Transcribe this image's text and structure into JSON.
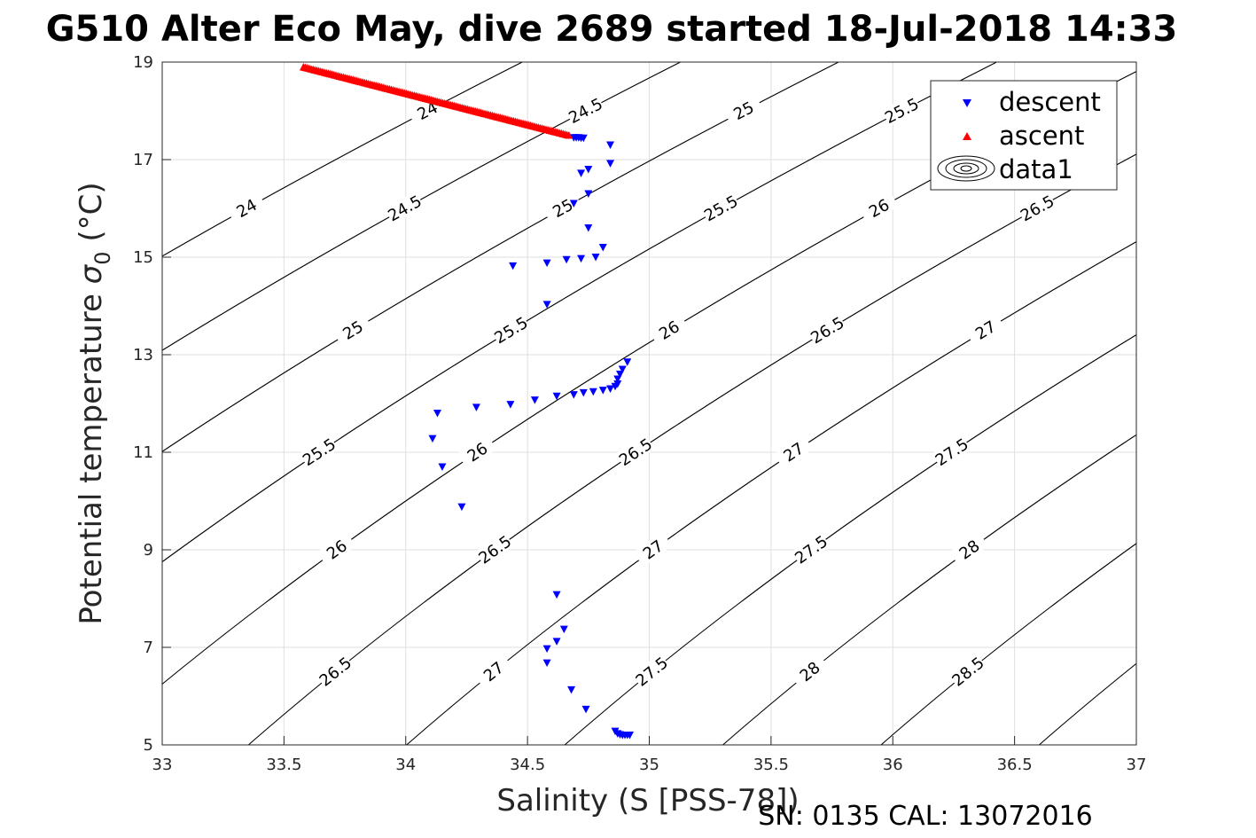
{
  "chart_data": {
    "type": "scatter",
    "title": "G510 Alter Eco May, dive 2689 started 18-Jul-2018 14:33",
    "xlabel": "Salinity (S [PSS-78])",
    "ylabel": "Potential temperature",
    "ylabel_symbol": "σ",
    "ylabel_subscript": "0",
    "ylabel_unit": "(°C)",
    "footer": "SN: 0135  CAL: 13072016",
    "xlim": [
      33,
      37
    ],
    "ylim": [
      5,
      19
    ],
    "xticks": [
      "33",
      "33.5",
      "34",
      "34.5",
      "35",
      "35.5",
      "36",
      "36.5",
      "37"
    ],
    "yticks": [
      "5",
      "7",
      "9",
      "11",
      "13",
      "15",
      "17",
      "19"
    ],
    "grid": true,
    "legend": {
      "placement": "top-right",
      "entries": [
        {
          "label": "descent",
          "marker": "triangle-down",
          "color": "#0000ff"
        },
        {
          "label": "ascent",
          "marker": "triangle-up",
          "color": "#ff0000"
        },
        {
          "label": "data1",
          "marker": "contour",
          "color": "#000000"
        }
      ]
    },
    "contour_levels": [
      "24",
      "24.5",
      "25",
      "25.5",
      "26",
      "26.5",
      "27",
      "27.5",
      "28",
      "28.5",
      "29"
    ],
    "series": [
      {
        "name": "descent",
        "color": "#0000ff",
        "marker": "triangle-down",
        "points": [
          [
            34.69,
            17.45
          ],
          [
            34.7,
            17.45
          ],
          [
            34.71,
            17.45
          ],
          [
            34.72,
            17.44
          ],
          [
            34.73,
            17.44
          ],
          [
            34.84,
            17.3
          ],
          [
            34.84,
            16.92
          ],
          [
            34.75,
            16.8
          ],
          [
            34.72,
            16.72
          ],
          [
            34.75,
            16.3
          ],
          [
            34.69,
            16.1
          ],
          [
            34.75,
            15.6
          ],
          [
            34.81,
            15.2
          ],
          [
            34.78,
            15.0
          ],
          [
            34.72,
            14.97
          ],
          [
            34.66,
            14.95
          ],
          [
            34.58,
            14.88
          ],
          [
            34.44,
            14.82
          ],
          [
            34.58,
            14.03
          ],
          [
            34.91,
            12.85
          ],
          [
            34.89,
            12.7
          ],
          [
            34.88,
            12.6
          ],
          [
            34.87,
            12.5
          ],
          [
            34.87,
            12.4
          ],
          [
            34.86,
            12.35
          ],
          [
            34.84,
            12.3
          ],
          [
            34.81,
            12.27
          ],
          [
            34.77,
            12.24
          ],
          [
            34.73,
            12.22
          ],
          [
            34.69,
            12.18
          ],
          [
            34.62,
            12.15
          ],
          [
            34.53,
            12.07
          ],
          [
            34.43,
            11.98
          ],
          [
            34.29,
            11.92
          ],
          [
            34.13,
            11.8
          ],
          [
            34.11,
            11.28
          ],
          [
            34.15,
            10.7
          ],
          [
            34.23,
            9.88
          ],
          [
            34.62,
            8.08
          ],
          [
            34.65,
            7.37
          ],
          [
            34.62,
            7.12
          ],
          [
            34.58,
            6.97
          ],
          [
            34.58,
            6.68
          ],
          [
            34.68,
            6.13
          ],
          [
            34.74,
            5.73
          ],
          [
            34.86,
            5.28
          ],
          [
            34.87,
            5.23
          ],
          [
            34.88,
            5.21
          ],
          [
            34.89,
            5.2
          ],
          [
            34.9,
            5.2
          ],
          [
            34.91,
            5.2
          ],
          [
            34.92,
            5.2
          ]
        ]
      },
      {
        "name": "ascent",
        "color": "#ff0000",
        "marker": "triangle-up",
        "x_start": 33.58,
        "y_start": 18.9,
        "x_end": 34.67,
        "y_end": 17.5,
        "count": 140
      }
    ]
  }
}
